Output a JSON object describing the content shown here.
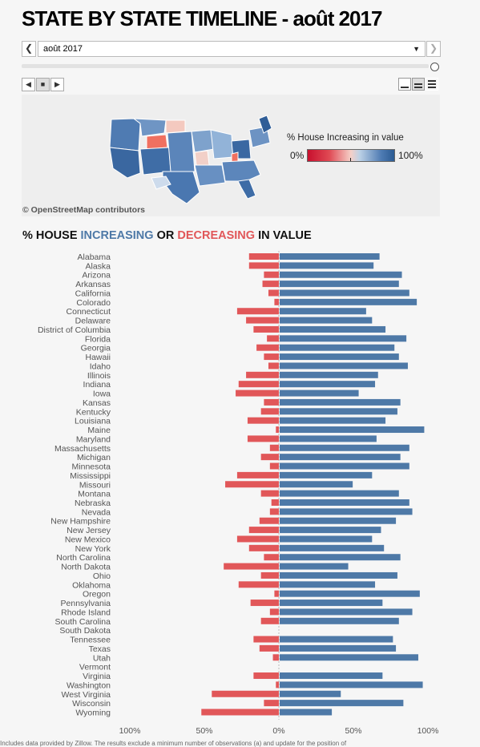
{
  "header": {
    "title": "STATE BY STATE TIMELINE - août 2017"
  },
  "selector": {
    "value": "août 2017",
    "prev_icon": "chevron-left-icon",
    "next_icon": "chevron-right-icon",
    "dropdown_icon": "caret-down-icon"
  },
  "map": {
    "attribution": "© OpenStreetMap contributors",
    "legend": {
      "title": "% House Increasing in value",
      "min_label": "0%",
      "max_label": "100%"
    },
    "colors": {
      "high": "#2b5b93",
      "mid": "#8fb0d3",
      "low": "#f08070",
      "neutral": "#f2d4cc"
    }
  },
  "chart_title": {
    "prefix": "% HOUSE ",
    "increasing": "INCREASING",
    "or": " OR ",
    "decreasing": "DECREASING",
    "suffix": " IN VALUE"
  },
  "colors": {
    "increasing": "#4e79a7",
    "decreasing": "#e15759"
  },
  "chart_data": {
    "type": "bar",
    "orientation": "horizontal-diverging",
    "title": "% HOUSE INCREASING OR DECREASING IN VALUE",
    "xlim": [
      -100,
      100
    ],
    "x_ticks": [
      "100%",
      "50%",
      "0%",
      "50%",
      "100%"
    ],
    "categories": [
      "Alabama",
      "Alaska",
      "Arizona",
      "Arkansas",
      "California",
      "Colorado",
      "Connecticut",
      "Delaware",
      "District of Columbia",
      "Florida",
      "Georgia",
      "Hawaii",
      "Idaho",
      "Illinois",
      "Indiana",
      "Iowa",
      "Kansas",
      "Kentucky",
      "Louisiana",
      "Maine",
      "Maryland",
      "Massachusetts",
      "Michigan",
      "Minnesota",
      "Mississippi",
      "Missouri",
      "Montana",
      "Nebraska",
      "Nevada",
      "New Hampshire",
      "New Jersey",
      "New Mexico",
      "New York",
      "North Carolina",
      "North Dakota",
      "Ohio",
      "Oklahoma",
      "Oregon",
      "Pennsylvania",
      "Rhode Island",
      "South Carolina",
      "South Dakota",
      "Tennessee",
      "Texas",
      "Utah",
      "Vermont",
      "Virginia",
      "Washington",
      "West Virginia",
      "Wisconsin",
      "Wyoming"
    ],
    "series": [
      {
        "name": "Decreasing",
        "values": [
          20,
          20,
          10,
          11,
          7,
          3,
          28,
          22,
          17,
          8,
          15,
          10,
          7,
          22,
          27,
          29,
          10,
          12,
          21,
          2,
          21,
          6,
          12,
          6,
          28,
          36,
          12,
          5,
          6,
          13,
          20,
          28,
          20,
          10,
          37,
          12,
          27,
          3,
          19,
          6,
          12,
          0,
          17,
          13,
          4,
          0,
          17,
          2,
          45,
          10,
          52
        ]
      },
      {
        "name": "Increasing",
        "values": [
          67,
          63,
          82,
          80,
          87,
          92,
          58,
          62,
          71,
          85,
          77,
          80,
          86,
          66,
          64,
          53,
          81,
          79,
          71,
          97,
          65,
          87,
          81,
          87,
          62,
          49,
          80,
          87,
          89,
          78,
          68,
          62,
          70,
          81,
          46,
          79,
          64,
          94,
          69,
          89,
          80,
          0,
          76,
          78,
          93,
          0,
          69,
          96,
          41,
          83,
          35
        ]
      }
    ]
  },
  "footnote": "Includes data provided by Zillow. The results exclude a minimum number of observations (a) and update for the position of"
}
